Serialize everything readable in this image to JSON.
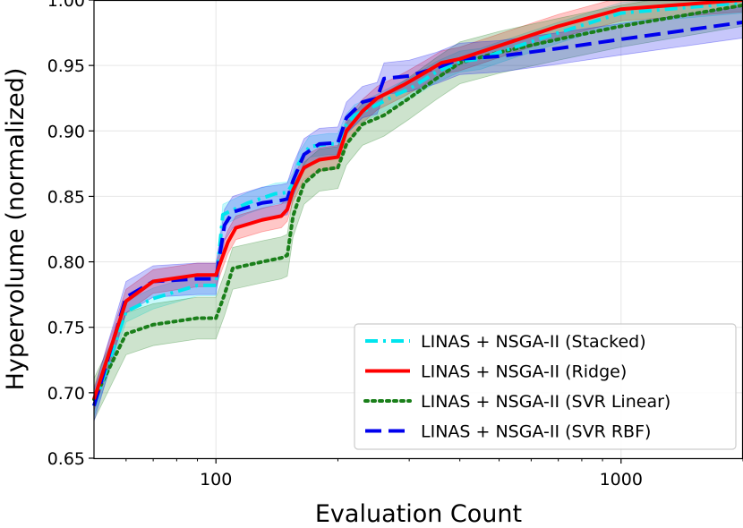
{
  "chart_data": {
    "type": "line",
    "xlabel": "Evaluation Count",
    "ylabel": "Hypervolume (normalized)",
    "xscale": "log",
    "xlim": [
      50,
      2000
    ],
    "ylim": [
      0.65,
      1.0
    ],
    "xticks": [
      {
        "value": 100,
        "label": "100"
      },
      {
        "value": 1000,
        "label": "1000"
      }
    ],
    "yticks": [
      {
        "value": 0.65,
        "label": "0.65"
      },
      {
        "value": 0.7,
        "label": "0.70"
      },
      {
        "value": 0.75,
        "label": "0.75"
      },
      {
        "value": 0.8,
        "label": "0.80"
      },
      {
        "value": 0.85,
        "label": "0.85"
      },
      {
        "value": 0.9,
        "label": "0.90"
      },
      {
        "value": 0.95,
        "label": "0.95"
      },
      {
        "value": 1.0,
        "label": "1.00"
      }
    ],
    "grid": true,
    "legend_position": "bottom-right",
    "series": [
      {
        "name": "LINAS + NSGA-II (Stacked)",
        "color": "#00e5ee",
        "dash": "dashdot",
        "band": 0.008,
        "points": [
          [
            50,
            0.69
          ],
          [
            60,
            0.762
          ],
          [
            70,
            0.772
          ],
          [
            90,
            0.782
          ],
          [
            100,
            0.782
          ],
          [
            104,
            0.836
          ],
          [
            120,
            0.845
          ],
          [
            140,
            0.852
          ],
          [
            150,
            0.853
          ],
          [
            155,
            0.86
          ],
          [
            160,
            0.875
          ],
          [
            170,
            0.888
          ],
          [
            190,
            0.89
          ],
          [
            200,
            0.89
          ],
          [
            210,
            0.905
          ],
          [
            220,
            0.912
          ],
          [
            250,
            0.92
          ],
          [
            280,
            0.928
          ],
          [
            300,
            0.932
          ],
          [
            350,
            0.945
          ],
          [
            400,
            0.953
          ],
          [
            450,
            0.955
          ],
          [
            500,
            0.96
          ],
          [
            700,
            0.975
          ],
          [
            1000,
            0.99
          ],
          [
            2000,
            0.998
          ]
        ]
      },
      {
        "name": "LINAS + NSGA-II (Ridge)",
        "color": "#ff0000",
        "dash": "solid",
        "band": 0.009,
        "points": [
          [
            50,
            0.695
          ],
          [
            60,
            0.77
          ],
          [
            70,
            0.785
          ],
          [
            90,
            0.79
          ],
          [
            100,
            0.79
          ],
          [
            107,
            0.815
          ],
          [
            112,
            0.826
          ],
          [
            130,
            0.832
          ],
          [
            145,
            0.835
          ],
          [
            150,
            0.84
          ],
          [
            155,
            0.855
          ],
          [
            165,
            0.872
          ],
          [
            180,
            0.878
          ],
          [
            200,
            0.88
          ],
          [
            210,
            0.9
          ],
          [
            230,
            0.915
          ],
          [
            250,
            0.925
          ],
          [
            290,
            0.935
          ],
          [
            330,
            0.945
          ],
          [
            360,
            0.952
          ],
          [
            400,
            0.955
          ],
          [
            500,
            0.965
          ],
          [
            700,
            0.98
          ],
          [
            1000,
            0.993
          ],
          [
            2000,
            1.0
          ]
        ]
      },
      {
        "name": "LINAS + NSGA-II (SVR Linear)",
        "color": "#1a7f1a",
        "dash": "dotted",
        "band": 0.016,
        "points": [
          [
            50,
            0.695
          ],
          [
            60,
            0.745
          ],
          [
            70,
            0.752
          ],
          [
            90,
            0.757
          ],
          [
            100,
            0.757
          ],
          [
            105,
            0.775
          ],
          [
            110,
            0.795
          ],
          [
            130,
            0.8
          ],
          [
            145,
            0.803
          ],
          [
            150,
            0.805
          ],
          [
            155,
            0.835
          ],
          [
            165,
            0.86
          ],
          [
            180,
            0.87
          ],
          [
            200,
            0.872
          ],
          [
            210,
            0.89
          ],
          [
            230,
            0.905
          ],
          [
            260,
            0.912
          ],
          [
            300,
            0.925
          ],
          [
            350,
            0.94
          ],
          [
            400,
            0.952
          ],
          [
            500,
            0.96
          ],
          [
            700,
            0.97
          ],
          [
            1000,
            0.98
          ],
          [
            2000,
            0.996
          ]
        ]
      },
      {
        "name": "LINAS + NSGA-II (SVR RBF)",
        "color": "#0000ee",
        "dash": "dashed",
        "band": 0.012,
        "points": [
          [
            50,
            0.69
          ],
          [
            60,
            0.773
          ],
          [
            70,
            0.785
          ],
          [
            90,
            0.787
          ],
          [
            100,
            0.787
          ],
          [
            105,
            0.828
          ],
          [
            110,
            0.838
          ],
          [
            130,
            0.845
          ],
          [
            145,
            0.847
          ],
          [
            150,
            0.848
          ],
          [
            155,
            0.862
          ],
          [
            165,
            0.882
          ],
          [
            180,
            0.89
          ],
          [
            200,
            0.891
          ],
          [
            210,
            0.91
          ],
          [
            230,
            0.922
          ],
          [
            250,
            0.925
          ],
          [
            260,
            0.94
          ],
          [
            300,
            0.942
          ],
          [
            350,
            0.948
          ],
          [
            400,
            0.955
          ],
          [
            500,
            0.957
          ],
          [
            700,
            0.963
          ],
          [
            1000,
            0.97
          ],
          [
            2000,
            0.983
          ]
        ]
      }
    ]
  }
}
